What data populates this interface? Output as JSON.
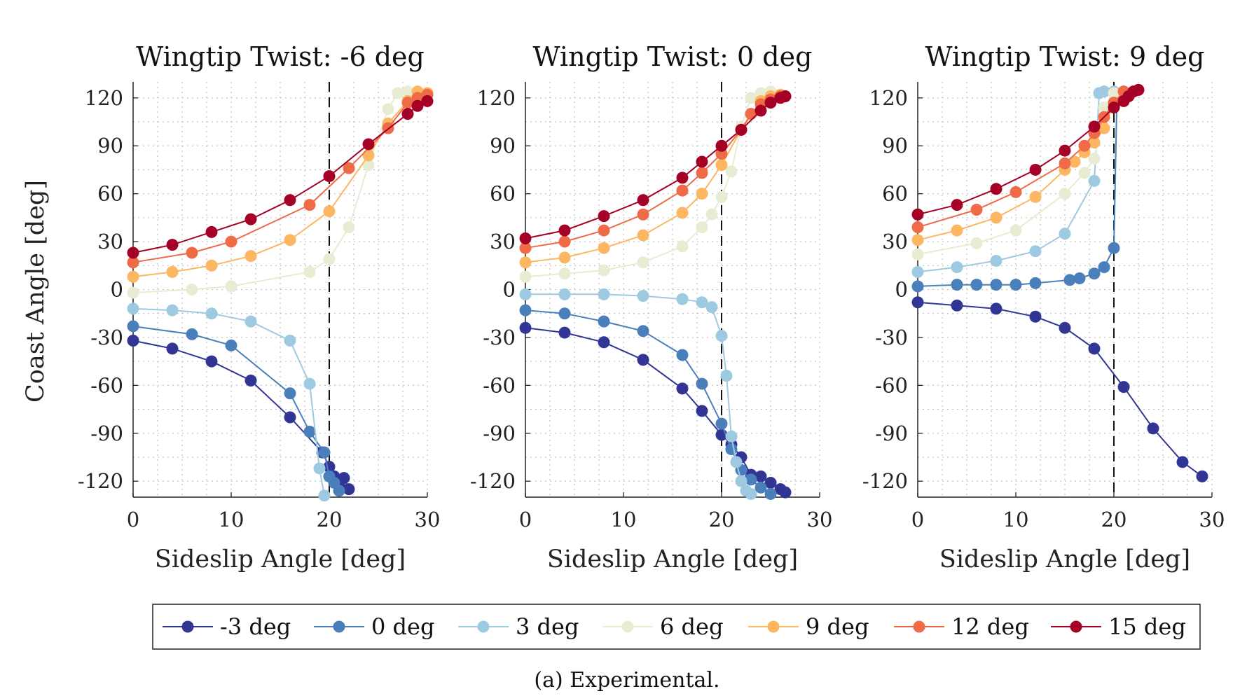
{
  "figure": {
    "ylabel": "Coast Angle [deg]",
    "caption": "(a) Experimental."
  },
  "legend": {
    "entries": [
      {
        "label": "-3 deg",
        "color": "#313695"
      },
      {
        "label": "0 deg",
        "color": "#4a7fbc"
      },
      {
        "label": "3 deg",
        "color": "#9ecae1"
      },
      {
        "label": "6 deg",
        "color": "#e8ecd2"
      },
      {
        "label": "9 deg",
        "color": "#fdb662"
      },
      {
        "label": "12 deg",
        "color": "#ef6b47"
      },
      {
        "label": "15 deg",
        "color": "#a50026"
      }
    ]
  },
  "chart_data": [
    {
      "type": "line",
      "title": "Wingtip Twist: -6 deg",
      "xlabel": "Sideslip Angle [deg]",
      "ylabel": "Coast Angle [deg]",
      "xlim": [
        0,
        30
      ],
      "ylim": [
        -130,
        130
      ],
      "xticks": [
        0,
        10,
        20,
        30
      ],
      "yticks": [
        -120,
        -90,
        -60,
        -30,
        0,
        30,
        60,
        90,
        120
      ],
      "grid": true,
      "vline_x": 20,
      "series": [
        {
          "name": "-3 deg",
          "x": [
            0,
            4,
            8,
            12,
            16,
            19.3,
            20,
            20.5,
            21,
            21.5,
            22
          ],
          "y": [
            -32,
            -37,
            -45,
            -57,
            -80,
            -102,
            -111,
            -117,
            -122,
            -118,
            -125
          ]
        },
        {
          "name": "0 deg",
          "x": [
            0,
            6,
            10,
            16,
            18,
            19.5,
            20,
            20.5,
            21
          ],
          "y": [
            -23,
            -28,
            -35,
            -65,
            -89,
            -102,
            -117,
            -121,
            -126
          ]
        },
        {
          "name": "3 deg",
          "x": [
            0,
            4,
            8,
            12,
            16,
            18,
            19,
            19.5
          ],
          "y": [
            -12,
            -13,
            -15,
            -20,
            -32,
            -59,
            -112,
            -129
          ]
        },
        {
          "name": "6 deg",
          "x": [
            0,
            6,
            10,
            18,
            20,
            22,
            24,
            26,
            27,
            28
          ],
          "y": [
            -2,
            0,
            2,
            11,
            19,
            39,
            78,
            113,
            123,
            124
          ]
        },
        {
          "name": "9 deg",
          "x": [
            0,
            4,
            8,
            12,
            16,
            20,
            24,
            26,
            28,
            29,
            30
          ],
          "y": [
            8,
            11,
            15,
            21,
            31,
            49,
            84,
            104,
            118,
            124,
            123
          ]
        },
        {
          "name": "12 deg",
          "x": [
            0,
            6,
            10,
            18,
            22,
            26,
            28,
            29,
            30
          ],
          "y": [
            17,
            23,
            30,
            53,
            76,
            101,
            117,
            120,
            122
          ]
        },
        {
          "name": "15 deg",
          "x": [
            0,
            4,
            8,
            12,
            16,
            20,
            24,
            28,
            29,
            30
          ],
          "y": [
            23,
            28,
            36,
            44,
            56,
            71,
            91,
            110,
            115,
            118
          ]
        }
      ]
    },
    {
      "type": "line",
      "title": "Wingtip Twist: 0 deg",
      "xlabel": "Sideslip Angle [deg]",
      "ylabel": "",
      "xlim": [
        0,
        30
      ],
      "ylim": [
        -130,
        130
      ],
      "xticks": [
        0,
        10,
        20,
        30
      ],
      "yticks": [
        -120,
        -90,
        -60,
        -30,
        0,
        30,
        60,
        90,
        120
      ],
      "grid": true,
      "vline_x": 20,
      "series": [
        {
          "name": "-3 deg",
          "x": [
            0,
            4,
            8,
            12,
            16,
            18,
            20,
            21,
            22,
            23,
            24,
            25,
            26,
            26.5
          ],
          "y": [
            -24,
            -27,
            -33,
            -44,
            -62,
            -76,
            -91,
            -97,
            -105,
            -116,
            -117,
            -121,
            -125,
            -127
          ]
        },
        {
          "name": "0 deg",
          "x": [
            0,
            4,
            8,
            12,
            16,
            18,
            20,
            21,
            22,
            23,
            24,
            25
          ],
          "y": [
            -13,
            -15,
            -20,
            -26,
            -41,
            -59,
            -84,
            -100,
            -113,
            -119,
            -124,
            -128
          ]
        },
        {
          "name": "3 deg",
          "x": [
            0,
            4,
            8,
            12,
            16,
            18,
            19,
            20,
            20.5,
            21,
            21.5,
            22,
            22.5,
            23
          ],
          "y": [
            -3,
            -3,
            -3,
            -4,
            -6,
            -8,
            -11,
            -29,
            -54,
            -92,
            -108,
            -120,
            -126,
            -128
          ]
        },
        {
          "name": "6 deg",
          "x": [
            0,
            4,
            8,
            12,
            16,
            18,
            19,
            20,
            21,
            22,
            23,
            24,
            25
          ],
          "y": [
            8,
            10,
            12,
            17,
            27,
            39,
            47,
            58,
            74,
            102,
            120,
            123,
            124
          ]
        },
        {
          "name": "9 deg",
          "x": [
            0,
            4,
            8,
            12,
            16,
            18,
            20,
            22,
            24,
            25,
            26
          ],
          "y": [
            17,
            20,
            26,
            34,
            48,
            60,
            78,
            100,
            118,
            121,
            122
          ]
        },
        {
          "name": "12 deg",
          "x": [
            0,
            4,
            8,
            12,
            16,
            18,
            20,
            22,
            23,
            24,
            25,
            26
          ],
          "y": [
            26,
            30,
            37,
            47,
            62,
            73,
            85,
            100,
            110,
            116,
            119,
            121
          ]
        },
        {
          "name": "15 deg",
          "x": [
            0,
            4,
            8,
            12,
            16,
            18,
            20,
            22,
            24,
            25,
            26,
            26.5
          ],
          "y": [
            32,
            37,
            46,
            56,
            70,
            80,
            90,
            100,
            112,
            117,
            120,
            121
          ]
        }
      ]
    },
    {
      "type": "line",
      "title": "Wingtip Twist: 9 deg",
      "xlabel": "Sideslip Angle [deg]",
      "ylabel": "",
      "xlim": [
        0,
        30
      ],
      "ylim": [
        -130,
        130
      ],
      "xticks": [
        0,
        10,
        20,
        30
      ],
      "yticks": [
        -120,
        -90,
        -60,
        -30,
        0,
        30,
        60,
        90,
        120
      ],
      "grid": true,
      "vline_x": 20,
      "series": [
        {
          "name": "-3 deg",
          "x": [
            0,
            4,
            8,
            12,
            15,
            18,
            21,
            24,
            27,
            29
          ],
          "y": [
            -8,
            -10,
            -12,
            -17,
            -24,
            -37,
            -61,
            -87,
            -108,
            -117
          ]
        },
        {
          "name": "0 deg",
          "x": [
            0,
            4,
            6,
            8,
            10,
            12,
            15.5,
            16.5,
            18,
            19,
            20,
            20.3,
            21
          ],
          "y": [
            2,
            3,
            3,
            3,
            3,
            4,
            6,
            7,
            10,
            14,
            26,
            118,
            122
          ]
        },
        {
          "name": "3 deg",
          "x": [
            0,
            4,
            8,
            12,
            15,
            18,
            18.5,
            19,
            20
          ],
          "y": [
            11,
            14,
            18,
            24,
            35,
            68,
            123,
            124,
            124
          ]
        },
        {
          "name": "6 deg",
          "x": [
            0,
            6,
            10,
            15,
            17,
            18,
            19,
            20
          ],
          "y": [
            22,
            29,
            37,
            60,
            73,
            82,
            114,
            123
          ]
        },
        {
          "name": "9 deg",
          "x": [
            0,
            4,
            8,
            12,
            15,
            16,
            17,
            18,
            19,
            20,
            21
          ],
          "y": [
            31,
            37,
            45,
            58,
            75,
            80,
            86,
            92,
            101,
            117,
            124
          ]
        },
        {
          "name": "12 deg",
          "x": [
            0,
            6,
            10,
            15,
            17,
            18,
            19,
            20,
            21
          ],
          "y": [
            39,
            50,
            61,
            79,
            90,
            98,
            108,
            117,
            124
          ]
        },
        {
          "name": "15 deg",
          "x": [
            0,
            4,
            8,
            12,
            15,
            18,
            20,
            21,
            21.5,
            22,
            22.5
          ],
          "y": [
            47,
            53,
            63,
            75,
            87,
            102,
            114,
            118,
            121,
            124,
            125
          ]
        }
      ]
    }
  ]
}
